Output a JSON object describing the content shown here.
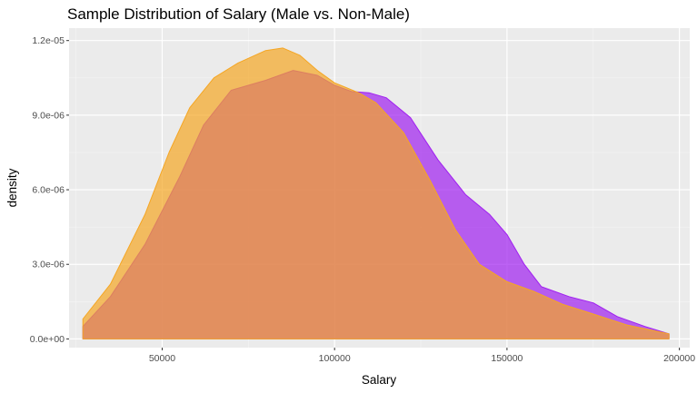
{
  "chart_data": {
    "type": "area",
    "title": "Sample Distribution of Salary (Male vs. Non-Male)",
    "xlabel": "Salary",
    "ylabel": "density",
    "xlim": [
      23000,
      203000
    ],
    "ylim": [
      -3.5e-07,
      1.25e-05
    ],
    "x_ticks": [
      50000,
      100000,
      150000,
      200000
    ],
    "x_tick_labels": [
      "50000",
      "100000",
      "150000",
      "200000"
    ],
    "y_ticks": [
      0,
      3e-06,
      6e-06,
      9e-06,
      1.2e-05
    ],
    "y_tick_labels": [
      "0.0e+00",
      "3.0e-06",
      "6.0e-06",
      "9.0e-06",
      "1.2e-05"
    ],
    "grid": true,
    "legend": "none",
    "series": [
      {
        "color": "#a020f0",
        "fill_opacity": 0.7,
        "points": [
          [
            27000,
            5e-07
          ],
          [
            35000,
            1.7e-06
          ],
          [
            45000,
            3.8e-06
          ],
          [
            55000,
            6.5e-06
          ],
          [
            62000,
            8.6e-06
          ],
          [
            70000,
            1e-05
          ],
          [
            80000,
            1.04e-05
          ],
          [
            88000,
            1.08e-05
          ],
          [
            95000,
            1.06e-05
          ],
          [
            100000,
            1.02e-05
          ],
          [
            105000,
            9.95e-06
          ],
          [
            110000,
            9.9e-06
          ],
          [
            115000,
            9.7e-06
          ],
          [
            122000,
            8.9e-06
          ],
          [
            130000,
            7.2e-06
          ],
          [
            138000,
            5.8e-06
          ],
          [
            145000,
            5e-06
          ],
          [
            150000,
            4.2e-06
          ],
          [
            155000,
            3e-06
          ],
          [
            160000,
            2.1e-06
          ],
          [
            168000,
            1.7e-06
          ],
          [
            175000,
            1.45e-06
          ],
          [
            182000,
            9e-07
          ],
          [
            190000,
            5e-07
          ],
          [
            197000,
            2e-07
          ]
        ]
      },
      {
        "color": "#f5a623",
        "fill_opacity": 0.7,
        "points": [
          [
            27000,
            8e-07
          ],
          [
            35000,
            2.2e-06
          ],
          [
            45000,
            5e-06
          ],
          [
            52000,
            7.5e-06
          ],
          [
            58000,
            9.3e-06
          ],
          [
            65000,
            1.05e-05
          ],
          [
            72000,
            1.11e-05
          ],
          [
            80000,
            1.16e-05
          ],
          [
            85000,
            1.17e-05
          ],
          [
            90000,
            1.14e-05
          ],
          [
            95000,
            1.08e-05
          ],
          [
            100000,
            1.03e-05
          ],
          [
            107000,
            9.9e-06
          ],
          [
            112000,
            9.5e-06
          ],
          [
            120000,
            8.3e-06
          ],
          [
            128000,
            6.3e-06
          ],
          [
            135000,
            4.4e-06
          ],
          [
            142000,
            3e-06
          ],
          [
            150000,
            2.3e-06
          ],
          [
            158000,
            1.9e-06
          ],
          [
            166000,
            1.4e-06
          ],
          [
            175000,
            1e-06
          ],
          [
            185000,
            5.5e-07
          ],
          [
            197000,
            2e-07
          ]
        ]
      }
    ]
  }
}
